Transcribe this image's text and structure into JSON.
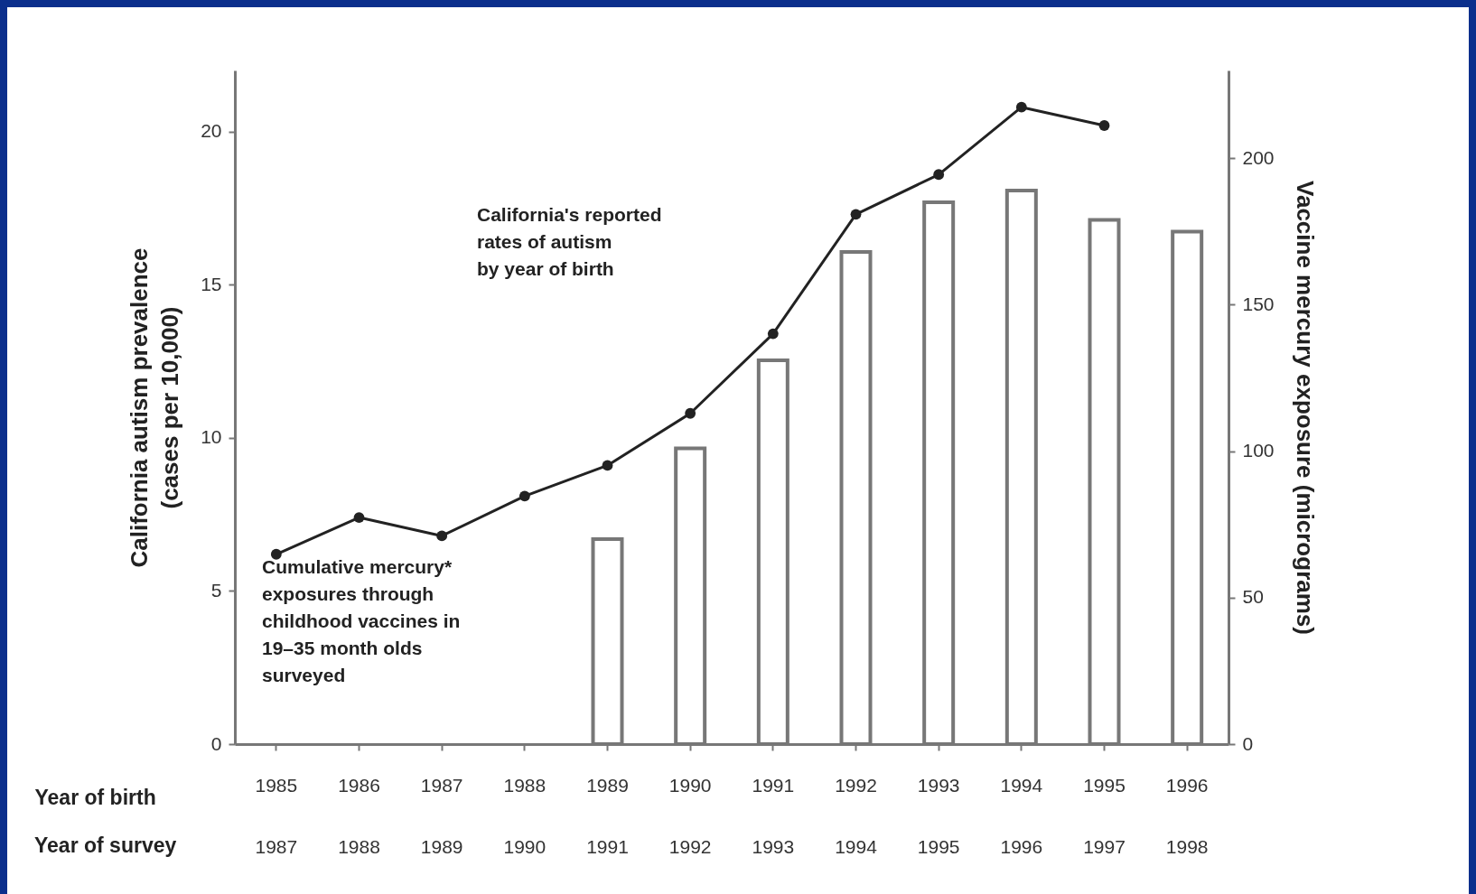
{
  "chart_data": {
    "type": "bar",
    "categories": [
      "1985",
      "1986",
      "1987",
      "1988",
      "1989",
      "1990",
      "1991",
      "1992",
      "1993",
      "1994",
      "1995",
      "1996"
    ],
    "xlabel": "Year of birth",
    "ylabel": "California autism prevalence\n(cases per 10,000)",
    "y2label": "Vaccine mercury exposure (micrograms)",
    "series": [
      {
        "axis": "y2",
        "color": "#ffffff",
        "values": [
          null,
          null,
          null,
          null,
          70,
          101,
          131,
          168,
          185,
          189,
          179,
          175
        ]
      },
      {
        "type": "line",
        "color": "#222222",
        "values": [
          6.2,
          7.4,
          6.8,
          8.1,
          9.1,
          10.8,
          13.4,
          17.3,
          18.6,
          20.8,
          20.2,
          null
        ]
      }
    ],
    "ylim": [
      0,
      22
    ],
    "yticks": [
      0,
      5,
      10,
      15,
      20
    ],
    "y2lim": [
      0,
      230
    ],
    "y2ticks": [
      0,
      50,
      100,
      150,
      200
    ],
    "marker": "circle",
    "line_style": "solid",
    "grid": false,
    "annotations": [
      "California's reported\nrates of autism\nby year of birth",
      "Cumulative mercury*\nexposures through\nchildhood vaccines in\n19–35 month olds\nsurveyed",
      "Year of survey",
      "1987",
      "1988",
      "1989",
      "1990",
      "1991",
      "1992",
      "1993",
      "1994",
      "1995",
      "1996",
      "1997",
      "1998"
    ]
  }
}
